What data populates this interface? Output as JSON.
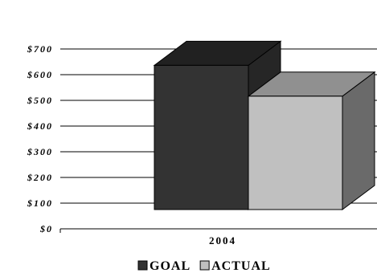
{
  "chart_data": {
    "type": "bar",
    "title": "",
    "xlabel": "",
    "ylabel": "",
    "categories": [
      "2004"
    ],
    "series": [
      {
        "name": "GOAL",
        "values": [
          730
        ],
        "color": "#333333"
      },
      {
        "name": "ACTUAL",
        "values": [
          610
        ],
        "color": "#c0c0c0"
      }
    ],
    "ylim": [
      0,
      700
    ],
    "yticks": [
      {
        "value": 0,
        "label": "$0"
      },
      {
        "value": 100,
        "label": "$100"
      },
      {
        "value": 200,
        "label": "$200"
      },
      {
        "value": 300,
        "label": "$300"
      },
      {
        "value": 400,
        "label": "$400"
      },
      {
        "value": 500,
        "label": "$500"
      },
      {
        "value": 600,
        "label": "$600"
      },
      {
        "value": 700,
        "label": "$700"
      }
    ],
    "grid": true,
    "legend_position": "bottom",
    "style": "3d"
  }
}
